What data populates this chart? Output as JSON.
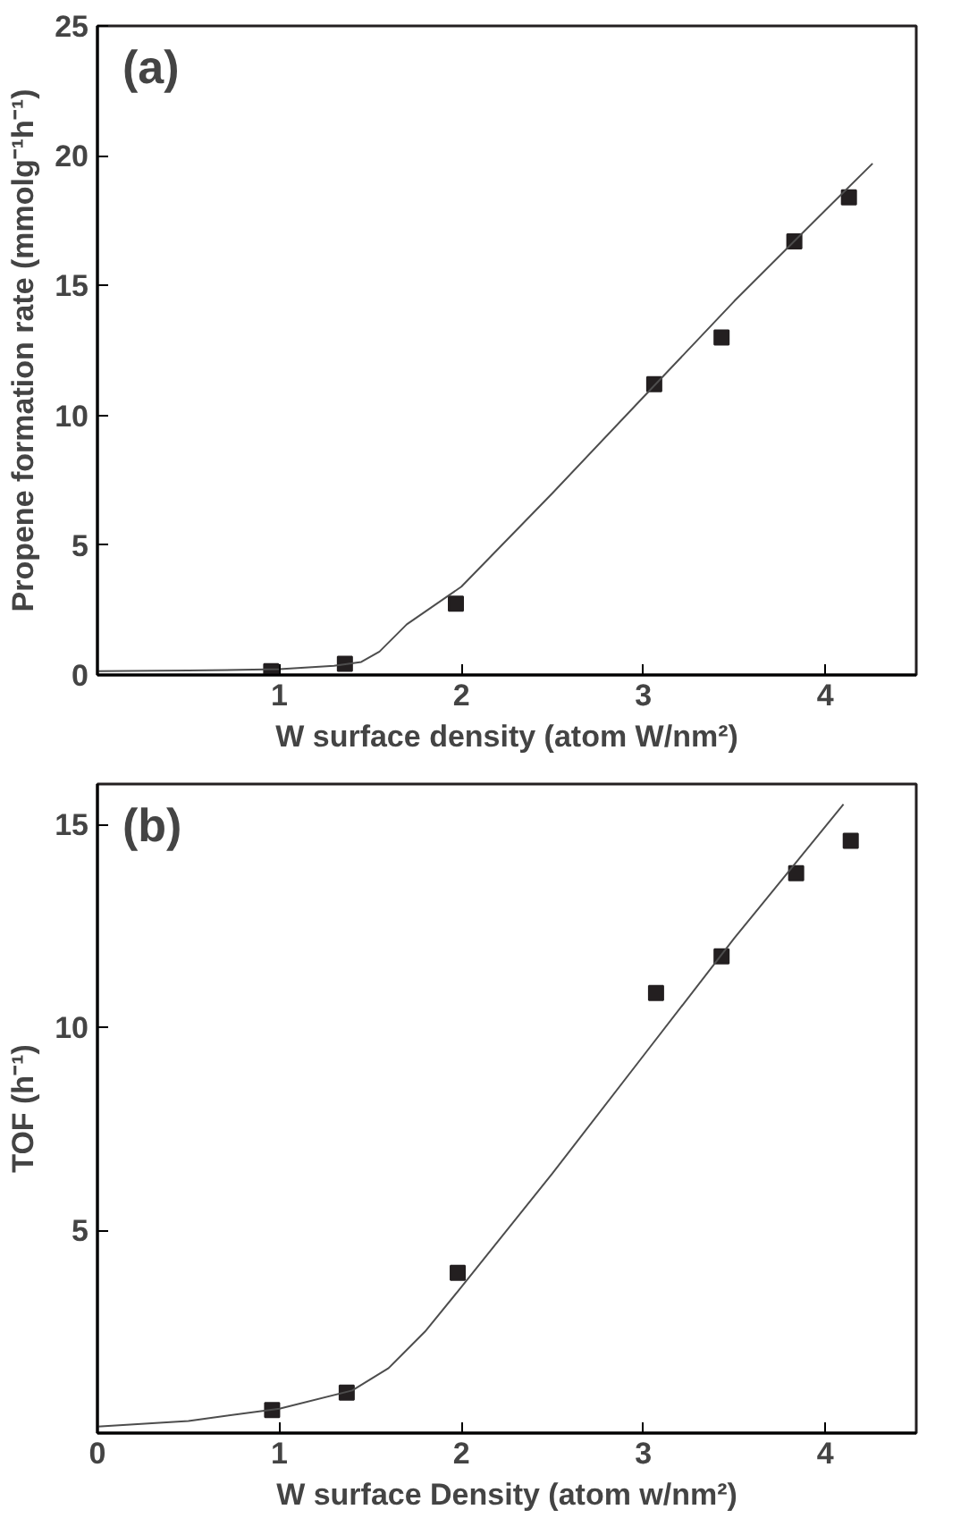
{
  "chart_data": [
    {
      "type": "scatter",
      "xlabel": "W surface density (atom W/nm²)",
      "ylabel": "Propene formation rate (mmolg⁻¹h⁻¹)",
      "annotations": [
        "(a)"
      ],
      "xlim": [
        0,
        4.5
      ],
      "ylim": [
        0,
        25
      ],
      "xticks": [
        1,
        2,
        3,
        4
      ],
      "yticks": [
        0,
        5,
        10,
        15,
        20,
        25
      ],
      "grid": false,
      "series": [
        {
          "marker": "square",
          "color": "#231f20",
          "x": [
            0.955,
            1.36,
            1.97,
            3.06,
            3.43,
            3.83,
            4.13
          ],
          "values": [
            0.15,
            0.43,
            2.75,
            11.2,
            13.0,
            16.7,
            18.4
          ]
        },
        {
          "type": "line",
          "line_style": "solid",
          "color": "#4d4d4d",
          "x": [
            0,
            0.5,
            1.0,
            1.3,
            1.45,
            1.55,
            1.7,
            2.0,
            2.5,
            3.0,
            3.5,
            4.0,
            4.26
          ],
          "values": [
            0.15,
            0.17,
            0.22,
            0.35,
            0.5,
            0.9,
            1.95,
            3.4,
            7.0,
            10.7,
            14.4,
            17.9,
            19.7
          ]
        }
      ]
    },
    {
      "type": "scatter",
      "xlabel": "W surface Density (atom w/nm²)",
      "ylabel": "TOF (h⁻¹)",
      "annotations": [
        "(b)"
      ],
      "xlim": [
        0,
        4.5
      ],
      "ylim": [
        0,
        16
      ],
      "xticks": [
        0,
        1,
        2,
        3,
        4
      ],
      "yticks": [
        5,
        10,
        15
      ],
      "grid": false,
      "series": [
        {
          "marker": "square",
          "color": "#231f20",
          "x": [
            0.96,
            1.37,
            1.98,
            3.07,
            3.43,
            3.84,
            4.14
          ],
          "values": [
            0.57,
            1.0,
            3.95,
            10.85,
            11.75,
            13.8,
            14.6
          ]
        },
        {
          "type": "line",
          "line_style": "solid",
          "color": "#4d4d4d",
          "x": [
            0,
            0.5,
            1.0,
            1.4,
            1.6,
            1.8,
            2.0,
            2.5,
            3.0,
            3.5,
            4.1
          ],
          "values": [
            0.16,
            0.3,
            0.6,
            1.05,
            1.6,
            2.5,
            3.6,
            6.4,
            9.3,
            12.2,
            15.5
          ]
        }
      ]
    }
  ]
}
